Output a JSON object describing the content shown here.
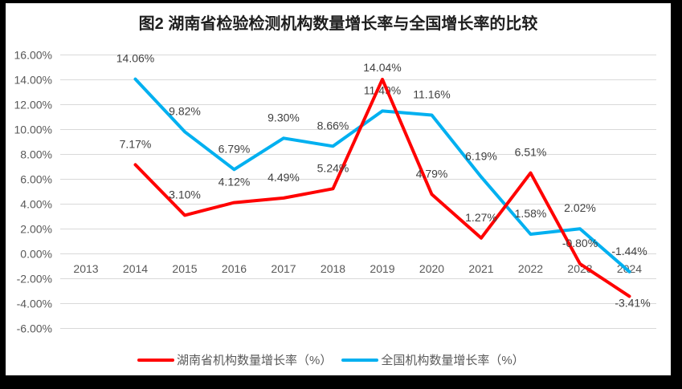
{
  "title": "图2 湖南省检验检测机构数量增长率与全国增长率的比较",
  "colors": {
    "frame_background": "#000000",
    "canvas_background": "#ffffff",
    "gridline": "#d9d9d9",
    "axis_tick_text": "#595959",
    "data_label_text": "#404040",
    "title_text": "#1f1f1f",
    "hunan_series": "#ff0000",
    "national_series": "#00b0f0"
  },
  "chart_data": {
    "type": "line",
    "title": "图2 湖南省检验检测机构数量增长率与全国增长率的比较",
    "x_labels": [
      "2013",
      "2014",
      "2015",
      "2016",
      "2017",
      "2018",
      "2019",
      "2020",
      "2021",
      "2022",
      "2023",
      "2024"
    ],
    "y_axis": {
      "min": -6,
      "max": 16,
      "step": 2,
      "tick_values": [
        16,
        14,
        12,
        10,
        8,
        6,
        4,
        2,
        0,
        -2,
        -4,
        -6
      ],
      "tick_labels": [
        "16.00%",
        "14.00%",
        "12.00%",
        "10.00%",
        "8.00%",
        "6.00%",
        "4.00%",
        "2.00%",
        "0.00%",
        "-2.00%",
        "-4.00%",
        "-6.00%"
      ]
    },
    "grid": true,
    "legend_position": "bottom",
    "data_labels_shown": true,
    "series": [
      {
        "name": "湖南省机构数量增长率（%）",
        "color": "#ff0000",
        "z": 2,
        "values": [
          null,
          7.17,
          3.1,
          4.12,
          4.49,
          5.24,
          14.04,
          4.79,
          1.27,
          6.51,
          -0.8,
          -3.41
        ],
        "labels": [
          null,
          "7.17%",
          "3.10%",
          "4.12%",
          "4.49%",
          "5.24%",
          "14.04%",
          "4.79%",
          "1.27%",
          "6.51%",
          "-0.80%",
          "-3.41%"
        ],
        "label_offsets": {
          "6": {
            "dy": -10
          },
          "11": {
            "dx": 4,
            "dy": 13
          }
        }
      },
      {
        "name": "全国机构数量增长率（%）",
        "color": "#00b0f0",
        "z": 1,
        "values": [
          null,
          14.06,
          9.82,
          6.79,
          9.3,
          8.66,
          11.49,
          11.16,
          6.19,
          1.58,
          2.02,
          -1.44
        ],
        "labels": [
          null,
          "14.06%",
          "9.82%",
          "6.79%",
          "9.30%",
          "8.66%",
          "11.49%",
          "11.16%",
          "6.19%",
          "1.58%",
          "2.02%",
          "-1.44%"
        ],
        "label_offsets": {}
      }
    ]
  }
}
